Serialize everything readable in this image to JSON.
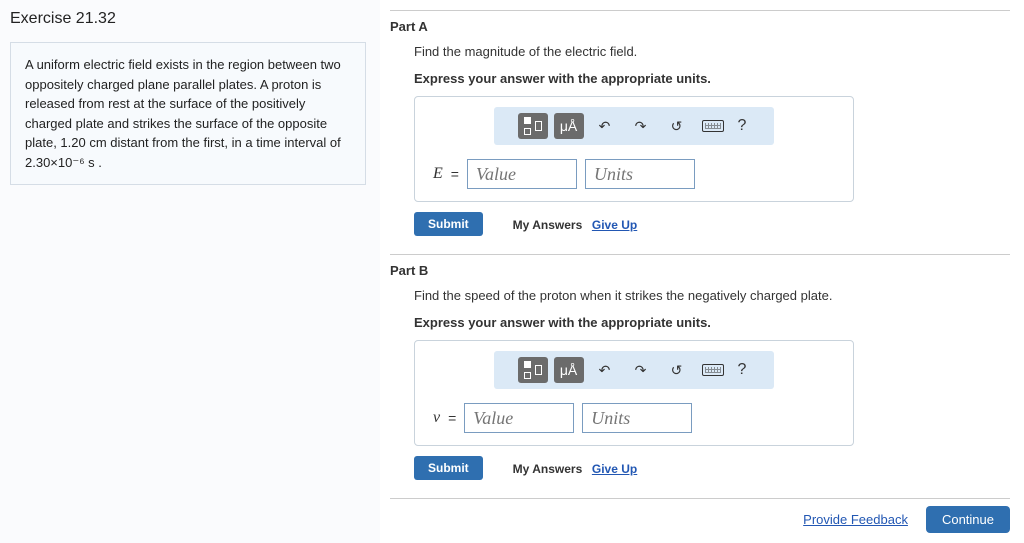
{
  "exercise": {
    "title": "Exercise 21.32",
    "problem_html": "A uniform electric field exists in the region between two oppositely charged plane parallel plates. A proton is released from rest at the surface of the positively charged plate and strikes the surface of the opposite plate, 1.20  cm distant from the first, in a time interval of 2.30×10⁻⁶  s ."
  },
  "parts": [
    {
      "label": "Part A",
      "prompt": "Find the magnitude of the electric field.",
      "instruction": "Express your answer with the appropriate units.",
      "variable": "E",
      "value_placeholder": "Value",
      "units_placeholder": "Units",
      "submit_label": "Submit",
      "my_answers_label": "My Answers",
      "giveup_label": "Give Up"
    },
    {
      "label": "Part B",
      "prompt": "Find the speed of the proton when it strikes the negatively charged plate.",
      "instruction": "Express your answer with the appropriate units.",
      "variable": "v",
      "value_placeholder": "Value",
      "units_placeholder": "Units",
      "submit_label": "Submit",
      "my_answers_label": "My Answers",
      "giveup_label": "Give Up"
    }
  ],
  "toolbar": {
    "units_symbol": "μÅ",
    "undo_glyph": "↶",
    "redo_glyph": "↷",
    "reset_glyph": "↺",
    "help_glyph": "?"
  },
  "footer": {
    "feedback_label": "Provide Feedback",
    "continue_label": "Continue"
  },
  "colors": {
    "primary_button": "#2f6fb0",
    "toolbar_bg": "#dbe9f6",
    "link": "#2257b3",
    "border": "#c9d3dc"
  }
}
